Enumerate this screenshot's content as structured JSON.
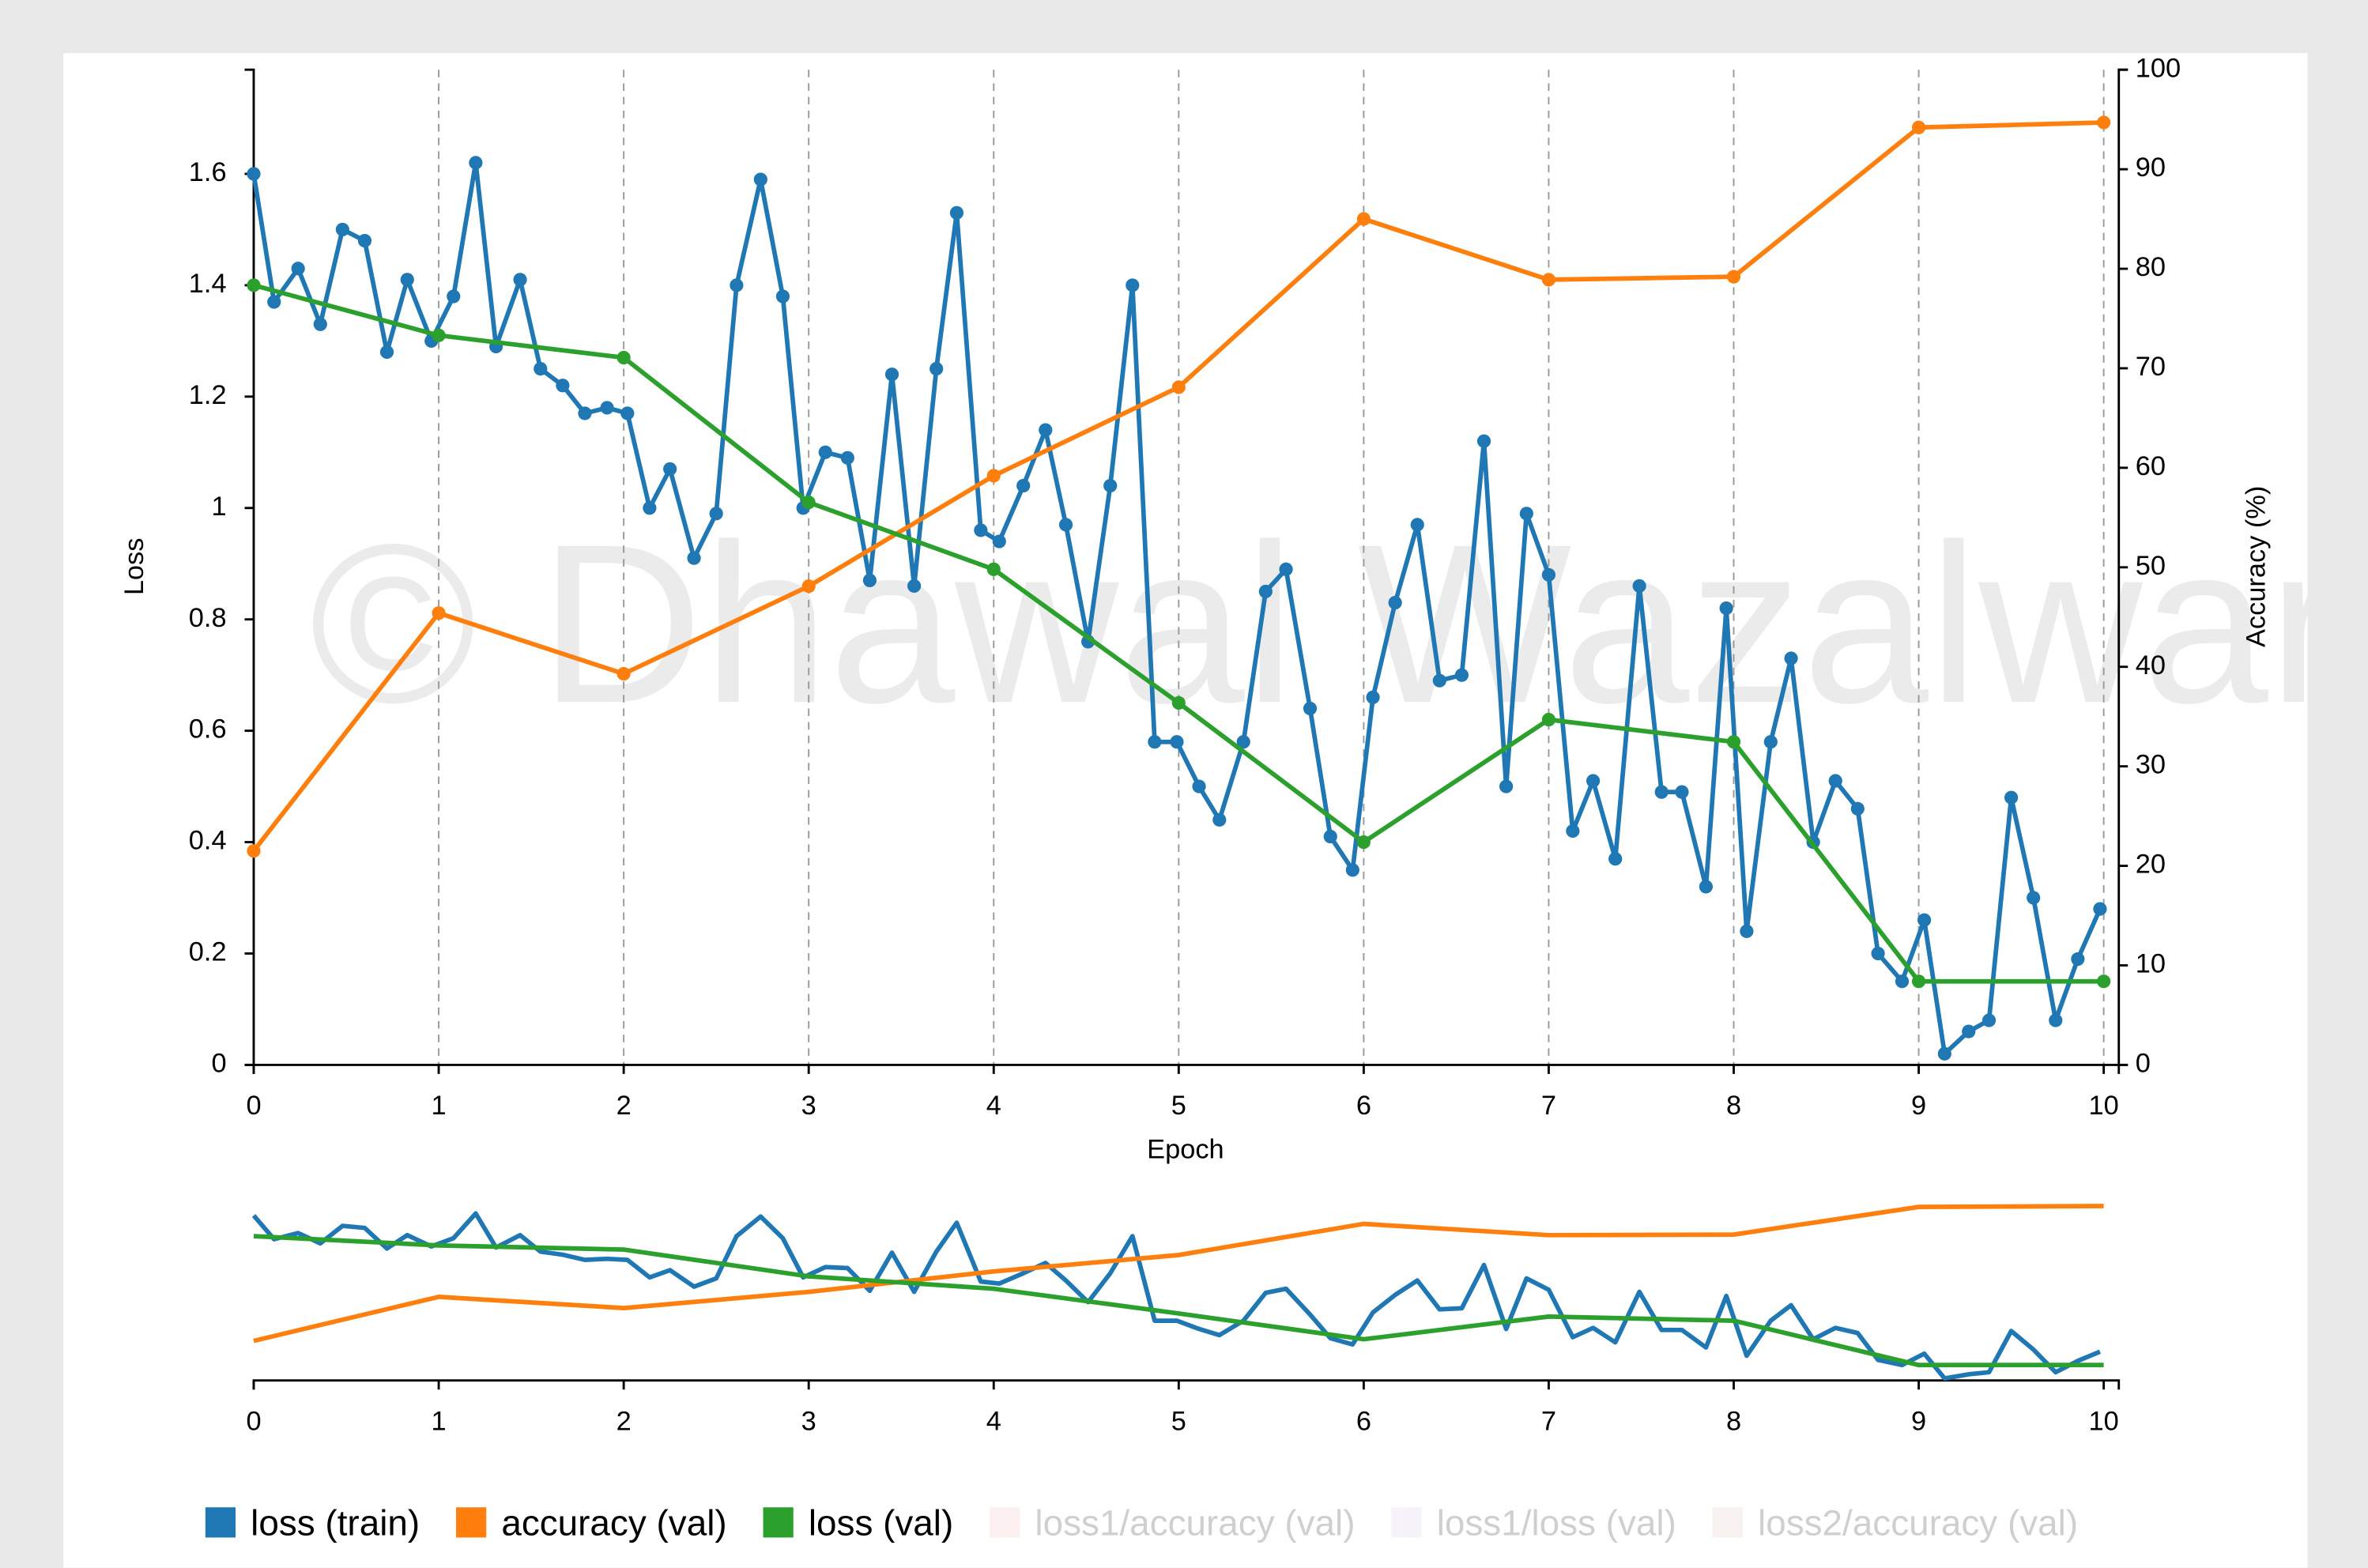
{
  "chart_data": {
    "type": "line",
    "watermark": "© Dhawal Wazalwar",
    "x_label": "Epoch",
    "y_label": "Loss",
    "y2_label": "Accuracy (%)",
    "xlim": [
      0,
      10
    ],
    "xticks": [
      0,
      1,
      2,
      3,
      4,
      5,
      6,
      7,
      8,
      9,
      10
    ],
    "ylim": [
      0,
      1.787
    ],
    "yticks": [
      0,
      0.2,
      0.4,
      0.6,
      0.8,
      1,
      1.2,
      1.4,
      1.6
    ],
    "y2lim": [
      0,
      100
    ],
    "y2ticks": [
      0,
      10,
      20,
      30,
      40,
      50,
      60,
      70,
      80,
      90,
      100
    ],
    "grid": "x",
    "series": [
      {
        "name": "loss (train)",
        "color": "#1f77b4",
        "markers": true,
        "x": [
          0,
          0.11,
          0.24,
          0.36,
          0.48,
          0.6,
          0.72,
          0.83,
          0.96,
          1.08,
          1.2,
          1.31,
          1.44,
          1.55,
          1.67,
          1.79,
          1.91,
          2.02,
          2.14,
          2.25,
          2.38,
          2.5,
          2.61,
          2.74,
          2.86,
          2.97,
          3.09,
          3.21,
          3.33,
          3.45,
          3.57,
          3.69,
          3.8,
          3.93,
          4.03,
          4.16,
          4.28,
          4.39,
          4.51,
          4.63,
          4.75,
          4.87,
          4.99,
          5.11,
          5.22,
          5.35,
          5.47,
          5.58,
          5.71,
          5.82,
          5.94,
          6.05,
          6.17,
          6.29,
          6.41,
          6.53,
          6.65,
          6.77,
          6.88,
          7,
          7.13,
          7.24,
          7.36,
          7.49,
          7.61,
          7.72,
          7.85,
          7.96,
          8.07,
          8.2,
          8.31,
          8.43,
          8.55,
          8.67,
          8.78,
          8.91,
          9.03,
          9.14,
          9.27,
          9.38,
          9.5,
          9.62,
          9.74,
          9.86,
          9.98
        ],
        "values": [
          1.6,
          1.37,
          1.43,
          1.33,
          1.5,
          1.48,
          1.28,
          1.41,
          1.3,
          1.38,
          1.62,
          1.29,
          1.41,
          1.25,
          1.22,
          1.17,
          1.18,
          1.17,
          1.0,
          1.07,
          0.91,
          0.99,
          1.4,
          1.59,
          1.38,
          1.0,
          1.1,
          1.09,
          0.87,
          1.24,
          0.86,
          1.25,
          1.53,
          0.96,
          0.94,
          1.04,
          1.14,
          0.97,
          0.76,
          1.04,
          1.4,
          0.58,
          0.58,
          0.5,
          0.44,
          0.58,
          0.85,
          0.89,
          0.64,
          0.41,
          0.35,
          0.66,
          0.83,
          0.97,
          0.69,
          0.7,
          1.12,
          0.5,
          0.99,
          0.88,
          0.42,
          0.51,
          0.37,
          0.86,
          0.49,
          0.49,
          0.32,
          0.82,
          0.24,
          0.58,
          0.73,
          0.4,
          0.51,
          0.46,
          0.2,
          0.15,
          0.26,
          0.02,
          0.06,
          0.08,
          0.48,
          0.3,
          0.08,
          0.19,
          0.28
        ]
      },
      {
        "name": "accuracy (val)",
        "color": "#ff7f0e",
        "axis": "y2",
        "markers": true,
        "x": [
          0,
          1,
          2,
          3,
          4,
          5,
          6,
          7,
          8,
          9,
          10
        ],
        "values": [
          21.5,
          45.4,
          39.3,
          48.1,
          59.2,
          68.1,
          85.0,
          78.9,
          79.2,
          94.2,
          94.7
        ]
      },
      {
        "name": "loss (val)",
        "color": "#2ca02c",
        "markers": true,
        "x": [
          0,
          1,
          2,
          3,
          4,
          5,
          6,
          7,
          8,
          9,
          10
        ],
        "values": [
          1.4,
          1.31,
          1.27,
          1.01,
          0.89,
          0.65,
          0.4,
          0.62,
          0.58,
          0.15,
          0.15
        ]
      }
    ],
    "legend_disabled": [
      {
        "name": "loss1/accuracy (val)",
        "color": "#f6d4d4"
      },
      {
        "name": "loss1/loss (val)",
        "color": "#e4dcf2"
      },
      {
        "name": "loss2/accuracy (val)",
        "color": "#ead9d6"
      }
    ]
  }
}
